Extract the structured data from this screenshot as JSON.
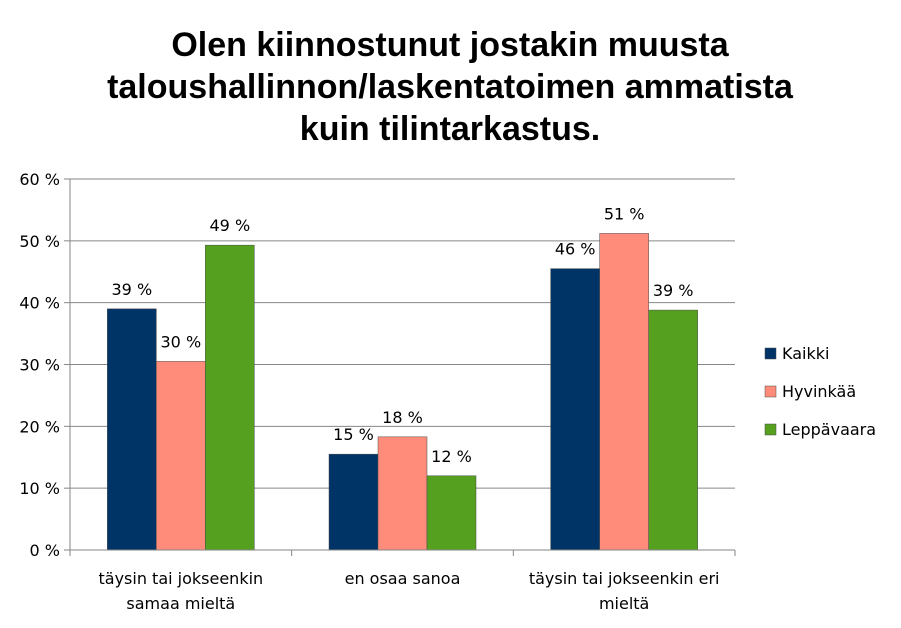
{
  "chart_data": {
    "type": "bar",
    "title_lines": [
      "Olen kiinnostunut jostakin muusta",
      "taloushallinnon/laskentatoimen ammatista",
      "kuin tilintarkastus."
    ],
    "categories": [
      [
        "täysin tai jokseenkin",
        "samaa mieltä"
      ],
      [
        "en osaa sanoa"
      ],
      [
        "täysin tai jokseenkin eri",
        "mieltä"
      ]
    ],
    "series": [
      {
        "name": "Kaikki",
        "color": "#003366",
        "values": [
          39,
          15.5,
          45.5
        ],
        "labels": [
          "39 %",
          "15 %",
          "46 %"
        ]
      },
      {
        "name": "Hyvinkää",
        "color": "#ff8c7a",
        "values": [
          30.5,
          18.3,
          51.2
        ],
        "labels": [
          "30 %",
          "18 %",
          "51 %"
        ]
      },
      {
        "name": "Leppävaara",
        "color": "#55a01e",
        "values": [
          49.3,
          12,
          38.8
        ],
        "labels": [
          "49 %",
          "12 %",
          "39 %"
        ]
      }
    ],
    "y_ticks": [
      {
        "value": 0,
        "label": "0 %"
      },
      {
        "value": 10,
        "label": "10 %"
      },
      {
        "value": 20,
        "label": "20 %"
      },
      {
        "value": 30,
        "label": "30 %"
      },
      {
        "value": 40,
        "label": "40 %"
      },
      {
        "value": 50,
        "label": "50 %"
      },
      {
        "value": 60,
        "label": "60 %"
      }
    ],
    "ylim": [
      0,
      60
    ],
    "grid": true,
    "legend_position": "right"
  }
}
